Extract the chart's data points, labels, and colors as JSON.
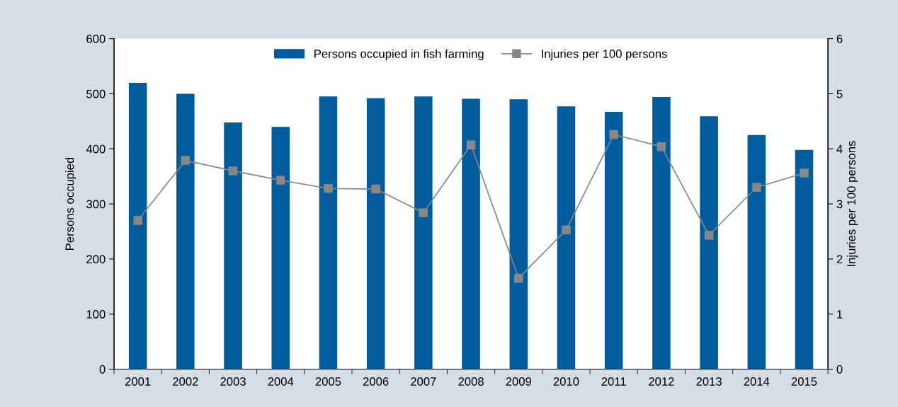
{
  "chart_data": {
    "type": "bar",
    "categories": [
      "2001",
      "2002",
      "2003",
      "2004",
      "2005",
      "2006",
      "2007",
      "2008",
      "2009",
      "2010",
      "2011",
      "2012",
      "2013",
      "2014",
      "2015"
    ],
    "series": [
      {
        "name": "Persons occupied in fish farming",
        "color": "#005c9c",
        "values": [
          520,
          500,
          448,
          440,
          495,
          492,
          495,
          491,
          490,
          477,
          467,
          494,
          459,
          425,
          398
        ]
      },
      {
        "name": "Injuries per 100 persons",
        "color": "#878787",
        "type": "line",
        "axis": "y2",
        "marker": "square",
        "values": [
          2.7,
          3.79,
          3.6,
          3.43,
          3.28,
          3.27,
          2.84,
          4.07,
          1.65,
          2.53,
          4.26,
          4.04,
          2.43,
          3.3,
          3.56
        ]
      }
    ],
    "ylabel": "Persons occupied",
    "y2label": "Injuries per 100 persons",
    "ylim": [
      0,
      600
    ],
    "yticks": [
      0,
      100,
      200,
      300,
      400,
      500,
      600
    ],
    "y2lim": [
      0,
      6
    ],
    "y2ticks": [
      0,
      1,
      2,
      3,
      4,
      5,
      6
    ],
    "legend": "top",
    "grid": false
  }
}
